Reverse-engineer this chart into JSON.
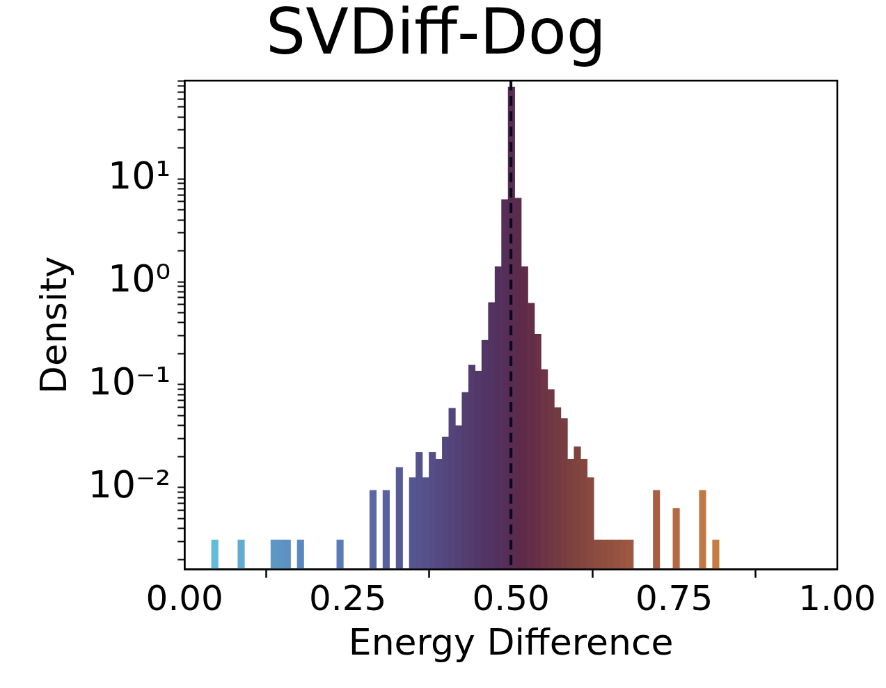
{
  "chart_data": {
    "type": "histogram",
    "title": "SVDiff-Dog",
    "xlabel": "Energy Difference",
    "ylabel": "Density",
    "log": "y",
    "bins": [
      0.0412,
      0.0513,
      0.0614,
      0.0715,
      0.0816,
      0.0917,
      0.1018,
      0.1119,
      0.122,
      0.1321,
      0.1422,
      0.1523,
      0.1624,
      0.1725,
      0.1826,
      0.1927,
      0.2028,
      0.2129,
      0.223,
      0.2331,
      0.2432,
      0.2533,
      0.2634,
      0.2735,
      0.2836,
      0.2937,
      0.3038,
      0.3139,
      0.324,
      0.3341,
      0.3442,
      0.3543,
      0.3644,
      0.3745,
      0.3846,
      0.3947,
      0.4048,
      0.4149,
      0.425,
      0.4351,
      0.4452,
      0.4553,
      0.4654,
      0.4755,
      0.4856,
      0.4957,
      0.5058,
      0.5159,
      0.526,
      0.5361,
      0.5462,
      0.5563,
      0.5664,
      0.5765,
      0.5866,
      0.5967,
      0.6068,
      0.6169,
      0.627,
      0.6371,
      0.6472,
      0.6573,
      0.6674,
      0.6775,
      0.6876,
      0.6977,
      0.7078,
      0.7179,
      0.728,
      0.7381,
      0.7482,
      0.7583,
      0.7684,
      0.7785,
      0.7886,
      0.7987,
      0.8088,
      0.8189
    ],
    "values": [
      0.0031,
      null,
      null,
      null,
      0.0031,
      null,
      null,
      null,
      null,
      0.0031,
      0.0031,
      0.0031,
      null,
      0.0031,
      null,
      null,
      null,
      null,
      null,
      0.0031,
      null,
      null,
      null,
      null,
      0.0094,
      null,
      0.0094,
      null,
      0.0157,
      null,
      0.0125,
      0.022,
      0.0125,
      0.022,
      0.0188,
      0.031,
      0.059,
      0.04,
      0.084,
      0.155,
      0.136,
      0.27,
      0.63,
      1.4,
      6.3,
      78,
      6.5,
      1.4,
      0.62,
      0.31,
      0.14,
      0.09,
      0.06,
      0.047,
      0.0188,
      0.025,
      0.0188,
      0.0125,
      0.0031,
      0.0031,
      0.0031,
      0.0031,
      0.0031,
      0.0031,
      null,
      null,
      null,
      0.0094,
      null,
      null,
      0.0063,
      null,
      null,
      null,
      0.0094,
      null,
      0.0031
    ],
    "colors": [
      "#62bcd8",
      "#62b8d7",
      "#62b4d6",
      "#62b0d5",
      "#62acd4",
      "#61a8d1",
      "#60a4ce",
      "#5fa0cb",
      "#5e9cc8",
      "#5d98c5",
      "#5d94c4",
      "#5c91c2",
      "#5c8ec0",
      "#5b8bbe",
      "#5b88bc",
      "#5b85bb",
      "#5a82ba",
      "#5a7fb9",
      "#5a7cb8",
      "#5a7ab8",
      "#5977b5",
      "#5974b2",
      "#5971af",
      "#596eac",
      "#5868a8",
      "#5865a4",
      "#5862a0",
      "#575f9c",
      "#575c98",
      "#565994",
      "#555690",
      "#55538d",
      "#54508a",
      "#544d86",
      "#544a82",
      "#53477e",
      "#53447a",
      "#534176",
      "#533e72",
      "#533b6e",
      "#52386a",
      "#523566",
      "#523362",
      "#53315e",
      "#552f5a",
      "#582b50",
      "#5c2a4a",
      "#602b49",
      "#642d48",
      "#682f47",
      "#6c3445",
      "#703744",
      "#743a42",
      "#783d41",
      "#7c4040",
      "#80443f",
      "#84463f",
      "#88493f",
      "#8c4c3f",
      "#904e3f",
      "#92503f",
      "#965240",
      "#9a5541",
      "#9e5842",
      "#a15a42",
      "#a45c42",
      "#a65d42",
      "#a85e42",
      "#ac6142",
      "#b06543",
      "#b46844",
      "#b86c44",
      "#bb7044",
      "#be7444",
      "#c07844",
      "#c27b44",
      "#c47e44"
    ],
    "xlim": [
      0,
      1
    ],
    "xticks": [
      {
        "value": 0,
        "label": "0.00"
      },
      {
        "value": 0.25,
        "label": "0.25"
      },
      {
        "value": 0.5,
        "label": "0.50"
      },
      {
        "value": 0.75,
        "label": "0.75"
      },
      {
        "value": 1,
        "label": "1.00"
      }
    ],
    "ylim": [
      0.0016,
      90
    ],
    "yticks": [
      {
        "value": 0.002,
        "label": null
      },
      {
        "value": 0.003,
        "label": null
      },
      {
        "value": 0.004,
        "label": null
      },
      {
        "value": 0.005,
        "label": null
      },
      {
        "value": 0.006,
        "label": null
      },
      {
        "value": 0.007,
        "label": null
      },
      {
        "value": 0.008,
        "label": null
      },
      {
        "value": 0.009,
        "label": null
      },
      {
        "value": 0.01,
        "label": "10⁻²"
      },
      {
        "value": 0.02,
        "label": null
      },
      {
        "value": 0.03,
        "label": null
      },
      {
        "value": 0.04,
        "label": null
      },
      {
        "value": 0.05,
        "label": null
      },
      {
        "value": 0.06,
        "label": null
      },
      {
        "value": 0.07,
        "label": null
      },
      {
        "value": 0.08,
        "label": null
      },
      {
        "value": 0.09,
        "label": null
      },
      {
        "value": 0.1,
        "label": "10⁻¹"
      },
      {
        "value": 0.2,
        "label": null
      },
      {
        "value": 0.3,
        "label": null
      },
      {
        "value": 0.4,
        "label": null
      },
      {
        "value": 0.5,
        "label": null
      },
      {
        "value": 0.6,
        "label": null
      },
      {
        "value": 0.7,
        "label": null
      },
      {
        "value": 0.8,
        "label": null
      },
      {
        "value": 0.9,
        "label": null
      },
      {
        "value": 1,
        "label": "10⁰"
      },
      {
        "value": 2,
        "label": null
      },
      {
        "value": 3,
        "label": null
      },
      {
        "value": 4,
        "label": null
      },
      {
        "value": 5,
        "label": null
      },
      {
        "value": 6,
        "label": null
      },
      {
        "value": 7,
        "label": null
      },
      {
        "value": 8,
        "label": null
      },
      {
        "value": 9,
        "label": null
      },
      {
        "value": 10,
        "label": "10¹"
      },
      {
        "value": 20,
        "label": null
      },
      {
        "value": 30,
        "label": null
      },
      {
        "value": 40,
        "label": null
      },
      {
        "value": 50,
        "label": null
      },
      {
        "value": 60,
        "label": null
      },
      {
        "value": 70,
        "label": null
      },
      {
        "value": 80,
        "label": null
      },
      {
        "value": 90,
        "label": null
      }
    ],
    "ref_lines": [
      {
        "axis": "x",
        "value": 0.5,
        "color": "#0a0a1e",
        "line_style": "dashed"
      }
    ]
  }
}
